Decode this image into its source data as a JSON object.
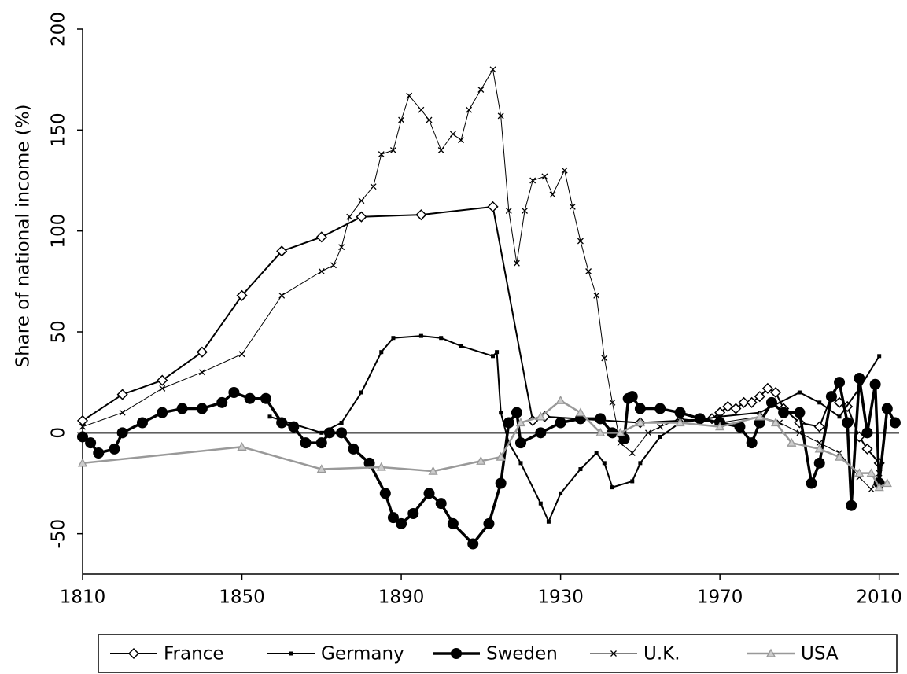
{
  "chart_data": {
    "type": "line",
    "ylabel": "Share of national income (%)",
    "xlim": [
      1810,
      2015
    ],
    "xticks": [
      1810,
      1850,
      1890,
      1930,
      1970,
      2010
    ],
    "ylim": [
      -70,
      200
    ],
    "yticks": [
      -50,
      0,
      50,
      100,
      150,
      200
    ],
    "legend": "bottom",
    "series": [
      {
        "name": "France",
        "color": "#000000",
        "marker": "diamond",
        "x": [
          1810,
          1820,
          1830,
          1840,
          1850,
          1860,
          1870,
          1880,
          1895,
          1913,
          1923,
          1926,
          1950,
          1960,
          1968,
          1970,
          1972,
          1974,
          1976,
          1978,
          1980,
          1982,
          1984,
          1986,
          1990,
          1995,
          1998,
          2000,
          2002,
          2005,
          2007,
          2010
        ],
        "values": [
          6,
          19,
          26,
          40,
          68,
          90,
          97,
          107,
          108,
          112,
          6,
          8,
          5,
          6,
          7,
          10,
          13,
          12,
          15,
          15,
          18,
          22,
          20,
          12,
          5,
          3,
          18,
          15,
          13,
          -2,
          -8,
          -15
        ]
      },
      {
        "name": "Germany",
        "color": "#000000",
        "marker": "square",
        "x": [
          1857,
          1870,
          1875,
          1880,
          1885,
          1888,
          1895,
          1900,
          1905,
          1913,
          1914,
          1915,
          1917,
          1920,
          1925,
          1927,
          1930,
          1935,
          1939,
          1941,
          1943,
          1948,
          1950,
          1955,
          1960,
          1970,
          1980,
          1990,
          1995,
          2000,
          2005,
          2010
        ],
        "values": [
          8,
          0,
          5,
          20,
          40,
          47,
          48,
          47,
          43,
          38,
          40,
          10,
          -5,
          -15,
          -35,
          -44,
          -30,
          -18,
          -10,
          -15,
          -27,
          -24,
          -15,
          -2,
          5,
          8,
          10,
          20,
          15,
          8,
          22,
          38
        ]
      },
      {
        "name": "Sweden",
        "color": "#000000",
        "marker": "circle",
        "x": [
          1810,
          1812,
          1814,
          1818,
          1820,
          1825,
          1830,
          1835,
          1840,
          1845,
          1848,
          1852,
          1856,
          1860,
          1863,
          1866,
          1870,
          1872,
          1875,
          1878,
          1882,
          1886,
          1888,
          1890,
          1893,
          1897,
          1900,
          1903,
          1908,
          1912,
          1915,
          1917,
          1919,
          1920,
          1925,
          1930,
          1935,
          1940,
          1943,
          1946,
          1947,
          1948,
          1950,
          1955,
          1960,
          1965,
          1970,
          1975,
          1978,
          1980,
          1983,
          1986,
          1990,
          1993,
          1995,
          1998,
          2000,
          2002,
          2003,
          2005,
          2007,
          2009,
          2010,
          2012,
          2014
        ],
        "values": [
          -2,
          -5,
          -10,
          -8,
          0,
          5,
          10,
          12,
          12,
          15,
          20,
          17,
          17,
          5,
          3,
          -5,
          -5,
          0,
          0,
          -8,
          -15,
          -30,
          -42,
          -45,
          -40,
          -30,
          -35,
          -45,
          -55,
          -45,
          -25,
          5,
          10,
          -5,
          0,
          5,
          7,
          7,
          0,
          -3,
          17,
          18,
          12,
          12,
          10,
          7,
          5,
          3,
          -5,
          5,
          15,
          10,
          10,
          -25,
          -15,
          18,
          25,
          5,
          -36,
          27,
          0,
          24,
          -25,
          12,
          5
        ]
      },
      {
        "name": "U.K.",
        "color": "#000000",
        "marker": "cross",
        "x": [
          1810,
          1820,
          1830,
          1840,
          1850,
          1860,
          1870,
          1873,
          1875,
          1877,
          1880,
          1883,
          1885,
          1888,
          1890,
          1892,
          1895,
          1897,
          1900,
          1903,
          1905,
          1907,
          1910,
          1913,
          1915,
          1917,
          1919,
          1921,
          1923,
          1926,
          1928,
          1931,
          1933,
          1935,
          1937,
          1939,
          1941,
          1943,
          1945,
          1948,
          1952,
          1955,
          1960,
          1970,
          1980,
          1985,
          1990,
          1995,
          2000,
          2005,
          2008,
          2010
        ],
        "values": [
          3,
          10,
          22,
          30,
          39,
          68,
          80,
          83,
          92,
          107,
          115,
          122,
          138,
          140,
          155,
          167,
          160,
          155,
          140,
          148,
          145,
          160,
          170,
          180,
          157,
          110,
          84,
          110,
          125,
          127,
          118,
          130,
          112,
          95,
          80,
          68,
          37,
          15,
          -5,
          -10,
          0,
          3,
          7,
          5,
          8,
          5,
          0,
          -5,
          -10,
          -22,
          -28,
          -20
        ]
      },
      {
        "name": "USA",
        "color": "#999999",
        "marker": "triangle",
        "x": [
          1810,
          1850,
          1870,
          1885,
          1898,
          1910,
          1915,
          1920,
          1925,
          1930,
          1935,
          1940,
          1945,
          1950,
          1960,
          1970,
          1980,
          1984,
          1988,
          1995,
          2000,
          2005,
          2008,
          2010,
          2012
        ],
        "values": [
          -15,
          -7,
          -18,
          -17,
          -19,
          -14,
          -12,
          5,
          8,
          16,
          10,
          0,
          0,
          5,
          5,
          3,
          8,
          5,
          -5,
          -8,
          -12,
          -20,
          -20,
          -27,
          -25
        ]
      }
    ]
  }
}
